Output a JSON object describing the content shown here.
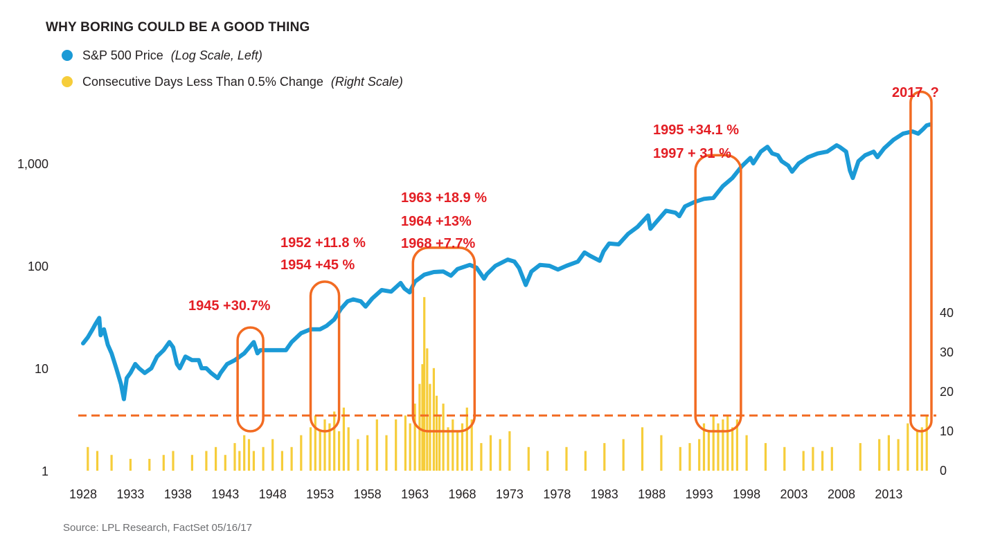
{
  "chart_data": {
    "type": "line",
    "title": "WHY BORING COULD BE A GOOD THING",
    "source": "Source: LPL Research, FactSet   05/16/17",
    "colors": {
      "price": "#1b9ad6",
      "days": "#f6cd3a",
      "threshold": "#f26b22",
      "highlight": "#f26b22",
      "annotation": "#e31e24"
    },
    "legend": [
      {
        "label": "S&P 500 Price",
        "note": "(Log Scale, Left)",
        "color": "#1b9ad6"
      },
      {
        "label": "Consecutive Days Less Than 0.5% Change",
        "note": "(Right Scale)",
        "color": "#f6cd3a"
      }
    ],
    "x_axis": {
      "range": [
        1928,
        2017.5
      ],
      "ticks": [
        "1928",
        "1933",
        "1938",
        "1943",
        "1948",
        "1953",
        "1958",
        "1963",
        "1968",
        "1973",
        "1978",
        "1983",
        "1988",
        "1993",
        "1998",
        "2003",
        "2008",
        "2013"
      ]
    },
    "y_left": {
      "scale": "log",
      "range": [
        1,
        10000
      ],
      "ticks": [
        "1",
        "10",
        "100",
        "1,000"
      ]
    },
    "y_right": {
      "range": [
        0,
        80
      ],
      "ticks": [
        "0",
        "10",
        "20",
        "30",
        "40"
      ]
    },
    "series": [
      {
        "name": "S&P 500 Price",
        "axis": "left",
        "x": [
          1928.0,
          1928.5,
          1929.0,
          1929.3,
          1929.7,
          1929.85,
          1930.2,
          1930.6,
          1931.0,
          1931.5,
          1932.0,
          1932.3,
          1932.6,
          1933.0,
          1933.5,
          1933.9,
          1934.5,
          1935.2,
          1935.8,
          1936.5,
          1937.1,
          1937.5,
          1937.9,
          1938.2,
          1938.8,
          1939.5,
          1940.2,
          1940.5,
          1941.0,
          1941.5,
          1942.2,
          1942.5,
          1943.2,
          1944.0,
          1945.0,
          1946.0,
          1946.4,
          1946.7,
          1947.5,
          1948.5,
          1949.4,
          1950.0,
          1951.0,
          1952.0,
          1953.0,
          1953.7,
          1954.5,
          1955.2,
          1955.9,
          1956.5,
          1957.3,
          1957.8,
          1958.5,
          1959.5,
          1960.5,
          1961.5,
          1961.9,
          1962.45,
          1963.0,
          1964.0,
          1965.0,
          1966.0,
          1966.8,
          1967.5,
          1968.8,
          1969.5,
          1970.3,
          1970.6,
          1971.5,
          1972.8,
          1973.5,
          1974.0,
          1974.7,
          1975.3,
          1976.2,
          1977.2,
          1978.1,
          1979.0,
          1980.2,
          1980.9,
          1981.5,
          1982.5,
          1982.9,
          1983.5,
          1984.5,
          1985.5,
          1986.5,
          1987.6,
          1987.85,
          1988.5,
          1989.5,
          1990.5,
          1990.9,
          1991.5,
          1992.5,
          1993.5,
          1994.5,
          1995.5,
          1996.5,
          1997.5,
          1998.4,
          1998.7,
          1999.5,
          2000.2,
          2000.7,
          2001.3,
          2001.7,
          2002.4,
          2002.8,
          2003.5,
          2004.5,
          2005.5,
          2006.5,
          2007.5,
          2007.8,
          2008.5,
          2008.9,
          2009.2,
          2009.8,
          2010.5,
          2011.4,
          2011.8,
          2012.5,
          2013.5,
          2014.5,
          2015.5,
          2016.1,
          2016.6,
          2017.0,
          2017.4
        ],
        "values": [
          17.5,
          20,
          24,
          27,
          31,
          21,
          24,
          17,
          14,
          10,
          7,
          5,
          8,
          9,
          11,
          10,
          9,
          10,
          13,
          15,
          18,
          16,
          11,
          10,
          13,
          12,
          12,
          10,
          10,
          9,
          8,
          9,
          11,
          12,
          14,
          18,
          14,
          15,
          15,
          15,
          15,
          18,
          22,
          24,
          24,
          26,
          30,
          38,
          45,
          47,
          45,
          40,
          48,
          58,
          56,
          68,
          60,
          55,
          70,
          82,
          87,
          88,
          80,
          93,
          102,
          96,
          75,
          83,
          100,
          115,
          110,
          95,
          65,
          88,
          102,
          100,
          92,
          100,
          110,
          135,
          125,
          112,
          138,
          165,
          162,
          205,
          240,
          310,
          230,
          270,
          345,
          330,
          305,
          380,
          420,
          450,
          460,
          600,
          720,
          940,
          1130,
          1000,
          1300,
          1450,
          1250,
          1200,
          1050,
          950,
          830,
          1000,
          1150,
          1250,
          1300,
          1500,
          1450,
          1300,
          850,
          720,
          1050,
          1200,
          1300,
          1150,
          1400,
          1700,
          1950,
          2050,
          1950,
          2150,
          2350,
          2400
        ]
      },
      {
        "name": "Consecutive Days Less Than 0.5% Change",
        "axis": "right",
        "type": "bar",
        "x": [
          1928.5,
          1929.5,
          1931.0,
          1933.0,
          1935.0,
          1936.5,
          1937.5,
          1939.5,
          1941.0,
          1942.0,
          1943.0,
          1944.0,
          1944.5,
          1945.0,
          1945.5,
          1946.0,
          1947.0,
          1948.0,
          1949.0,
          1950.0,
          1951.0,
          1952.0,
          1952.5,
          1953.0,
          1953.5,
          1954.0,
          1954.5,
          1955.0,
          1955.5,
          1956.0,
          1957.0,
          1958.0,
          1959.0,
          1960.0,
          1961.0,
          1962.0,
          1962.5,
          1963.0,
          1963.5,
          1963.8,
          1964.0,
          1964.3,
          1964.6,
          1965.0,
          1965.3,
          1965.6,
          1966.0,
          1966.5,
          1967.0,
          1967.5,
          1968.0,
          1968.5,
          1969.0,
          1970.0,
          1971.0,
          1972.0,
          1973.0,
          1975.0,
          1977.0,
          1979.0,
          1981.0,
          1983.0,
          1985.0,
          1987.0,
          1989.0,
          1991.0,
          1992.0,
          1993.0,
          1993.5,
          1994.0,
          1994.5,
          1995.0,
          1995.5,
          1996.0,
          1996.5,
          1997.0,
          1998.0,
          2000.0,
          2002.0,
          2004.0,
          2005.0,
          2006.0,
          2007.0,
          2010.0,
          2012.0,
          2013.0,
          2014.0,
          2015.0,
          2016.0,
          2016.5,
          2017.0
        ],
        "values": [
          6,
          5,
          4,
          3,
          3,
          4,
          5,
          4,
          5,
          6,
          4,
          7,
          5,
          9,
          8,
          5,
          6,
          8,
          5,
          6,
          9,
          11,
          14,
          10,
          13,
          12,
          15,
          10,
          16,
          11,
          8,
          9,
          13,
          9,
          13,
          14,
          12,
          17,
          22,
          27,
          44,
          31,
          22,
          26,
          19,
          14,
          17,
          11,
          13,
          10,
          12,
          16,
          13,
          7,
          9,
          8,
          10,
          6,
          5,
          6,
          5,
          7,
          8,
          11,
          9,
          6,
          7,
          8,
          12,
          10,
          14,
          12,
          13,
          14,
          11,
          13,
          9,
          7,
          6,
          5,
          6,
          5,
          6,
          7,
          8,
          9,
          8,
          12,
          10,
          11,
          14
        ]
      }
    ],
    "threshold_right_value": 14,
    "highlights": [
      {
        "x_start": 1944.3,
        "x_end": 1947.0,
        "top": 25
      },
      {
        "x_start": 1952.0,
        "x_end": 1955.0,
        "top": 70
      },
      {
        "x_start": 1962.8,
        "x_end": 1969.3,
        "top": 150
      },
      {
        "x_start": 1992.6,
        "x_end": 1997.4,
        "top": 1200
      },
      {
        "x_start": 2015.3,
        "x_end": 2017.5,
        "top": 5000
      }
    ],
    "annotations": [
      "1945 +30.7%",
      "1952 +11.8 %",
      "1954 +45 %",
      "1963 +18.9 %",
      "1964 +13%",
      "1968 +7.7%",
      "1995 +34.1 %",
      "1997 + 31 %",
      "2017  ?"
    ]
  }
}
